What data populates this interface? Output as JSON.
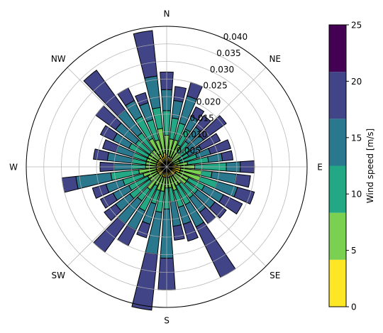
{
  "chart_data": {
    "type": "windrose",
    "title": "",
    "rmax": 0.04,
    "radial_ticks": [
      0.005,
      0.01,
      0.015,
      0.02,
      0.025,
      0.03,
      0.035,
      0.04
    ],
    "radial_tick_labels": [
      "0.005",
      "0.010",
      "0.015",
      "0.020",
      "0.025",
      "0.030",
      "0.035",
      "0.040"
    ],
    "direction_labels": [
      {
        "text": "N",
        "angle": 0
      },
      {
        "text": "NE",
        "angle": 45
      },
      {
        "text": "E",
        "angle": 90
      },
      {
        "text": "SE",
        "angle": 135
      },
      {
        "text": "S",
        "angle": 180
      },
      {
        "text": "SW",
        "angle": 225
      },
      {
        "text": "W",
        "angle": 270
      },
      {
        "text": "NW",
        "angle": 315
      }
    ],
    "sectors": 36,
    "bar_width_deg": 8,
    "speed_bins": [
      "0-5",
      "5-10",
      "10-15",
      "15-20",
      "20-25"
    ],
    "colors": [
      "#fde725",
      "#7ad151",
      "#22a884",
      "#2a788e",
      "#414487",
      "#440154"
    ],
    "cumulative_frequencies": [
      [
        0.0035,
        0.009,
        0.016,
        0.022,
        0.027
      ],
      [
        0.003,
        0.008,
        0.014,
        0.019,
        0.023
      ],
      [
        0.003,
        0.008,
        0.013,
        0.021,
        0.025
      ],
      [
        0.003,
        0.007,
        0.012,
        0.016,
        0.019
      ],
      [
        0.002,
        0.005,
        0.009,
        0.014,
        0.018
      ],
      [
        0.002,
        0.005,
        0.008,
        0.013,
        0.021
      ],
      [
        0.002,
        0.004,
        0.007,
        0.011,
        0.017
      ],
      [
        0.002,
        0.004,
        0.009,
        0.013,
        0.019
      ],
      [
        0.003,
        0.006,
        0.012,
        0.016,
        0.019
      ],
      [
        0.004,
        0.008,
        0.017,
        0.021,
        0.025
      ],
      [
        0.004,
        0.01,
        0.013,
        0.02,
        0.024
      ],
      [
        0.004,
        0.01,
        0.015,
        0.021,
        0.026
      ],
      [
        0.003,
        0.007,
        0.012,
        0.018,
        0.024
      ],
      [
        0.003,
        0.007,
        0.011,
        0.017,
        0.021
      ],
      [
        0.003,
        0.006,
        0.011,
        0.016,
        0.02
      ],
      [
        0.003,
        0.006,
        0.012,
        0.019,
        0.035
      ],
      [
        0.003,
        0.007,
        0.012,
        0.017,
        0.022
      ],
      [
        0.003,
        0.006,
        0.01,
        0.017,
        0.021
      ],
      [
        0.003,
        0.006,
        0.012,
        0.026,
        0.035
      ],
      [
        0.003,
        0.007,
        0.013,
        0.025,
        0.041
      ],
      [
        0.003,
        0.007,
        0.011,
        0.017,
        0.021
      ],
      [
        0.002,
        0.006,
        0.014,
        0.02,
        0.025
      ],
      [
        0.003,
        0.008,
        0.012,
        0.02,
        0.03
      ],
      [
        0.003,
        0.006,
        0.013,
        0.018,
        0.022
      ],
      [
        0.003,
        0.006,
        0.012,
        0.017,
        0.021
      ],
      [
        0.003,
        0.007,
        0.013,
        0.018,
        0.022
      ],
      [
        0.003,
        0.008,
        0.016,
        0.026,
        0.03
      ],
      [
        0.003,
        0.006,
        0.01,
        0.015,
        0.019
      ],
      [
        0.003,
        0.006,
        0.01,
        0.017,
        0.021
      ],
      [
        0.003,
        0.006,
        0.01,
        0.015,
        0.019
      ],
      [
        0.003,
        0.006,
        0.012,
        0.017,
        0.021
      ],
      [
        0.003,
        0.006,
        0.011,
        0.018,
        0.025
      ],
      [
        0.003,
        0.006,
        0.012,
        0.02,
        0.034
      ],
      [
        0.004,
        0.009,
        0.016,
        0.021,
        0.025
      ],
      [
        0.003,
        0.008,
        0.014,
        0.019,
        0.022
      ],
      [
        0.004,
        0.011,
        0.017,
        0.026,
        0.039
      ]
    ],
    "colorbar": {
      "label": "Wind speed [m/s]",
      "ticks": [
        "0",
        "5",
        "10",
        "15",
        "20",
        "25"
      ],
      "min": 0,
      "max": 25,
      "colors": [
        "#fde725",
        "#7ad151",
        "#22a884",
        "#2a788e",
        "#414487",
        "#440154"
      ]
    }
  }
}
